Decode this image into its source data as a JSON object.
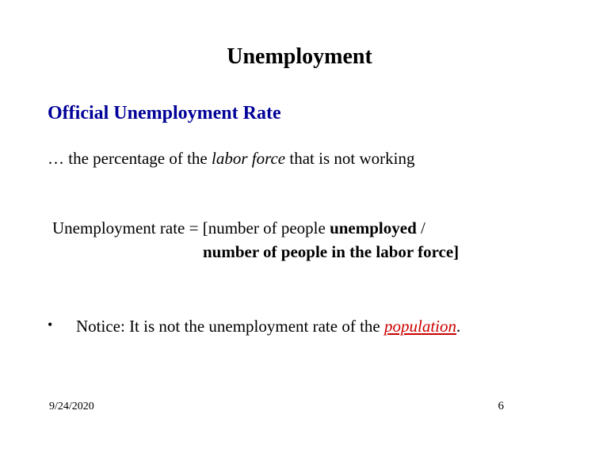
{
  "title": "Unemployment",
  "subtitle": "Official Unemployment Rate",
  "definition": {
    "prefix": "… the percentage of the ",
    "italic": "labor force",
    "suffix": " that is not working"
  },
  "formula": {
    "line1_prefix": "Unemployment rate = [number of people ",
    "line1_bold": "unemployed",
    "line1_suffix": " /",
    "line2": "number of people in the labor force]"
  },
  "bullet": {
    "marker": "•",
    "lead": "Notice:",
    "mid": "  It is not the unemployment rate of the ",
    "emph": "population",
    "tail": "."
  },
  "footer": {
    "date": "9/24/2020",
    "page": "6"
  },
  "colors": {
    "title": "#000000",
    "subtitle": "#000099",
    "emphasis": "#cc0000",
    "background": "#ffffff",
    "text": "#000000"
  },
  "fonts": {
    "family": "Times New Roman",
    "title_size_pt": 28,
    "subtitle_size_pt": 24,
    "body_size_pt": 21,
    "footer_size_pt": 14
  }
}
